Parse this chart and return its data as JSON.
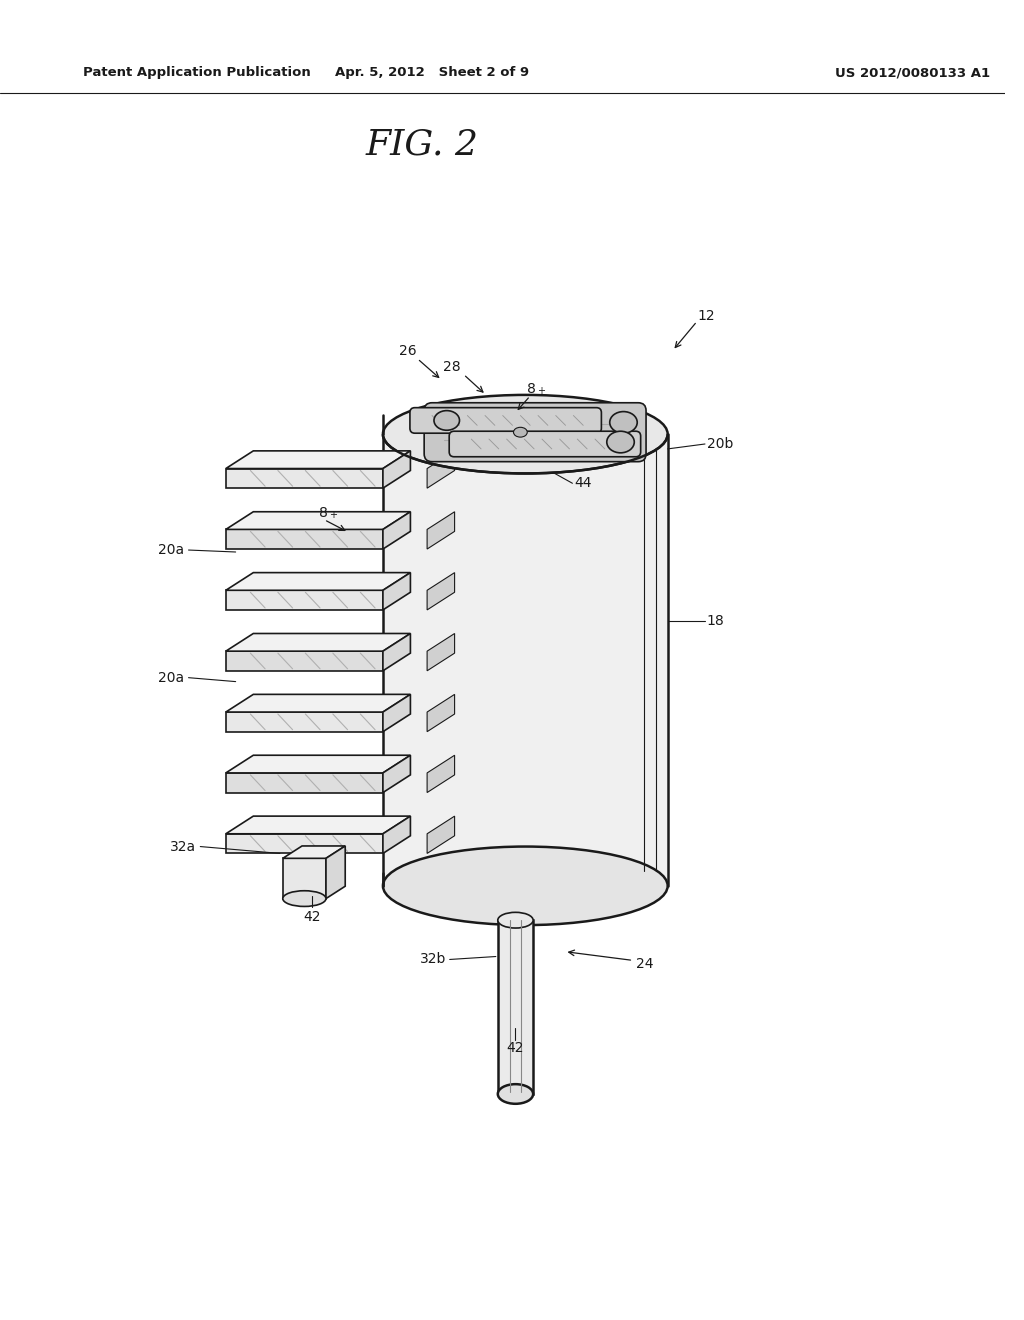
{
  "background_color": "#ffffff",
  "header_left": "Patent Application Publication",
  "header_center": "Apr. 5, 2012   Sheet 2 of 9",
  "header_right": "US 2012/0080133 A1",
  "figure_label": "FIG. 2",
  "line_color": "#1a1a1a",
  "light_gray": "#e8e8e8",
  "mid_gray": "#c8c8c8",
  "dark_gray": "#a0a0a0",
  "white_fill": "#f5f5f5",
  "label_fontsize": 10
}
